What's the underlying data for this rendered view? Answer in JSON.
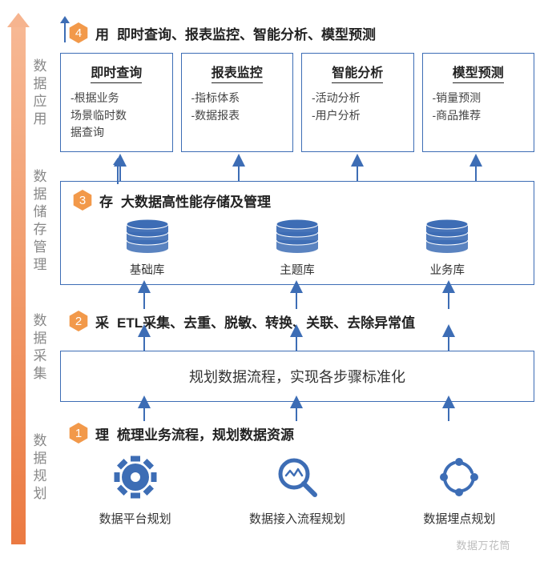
{
  "colors": {
    "box_border": "#3d6db5",
    "icon_blue": "#3d6db5",
    "badge_fill": "#f2994a",
    "text_dark": "#222222",
    "text_mid": "#444444",
    "text_gray": "#888888",
    "gradient_top": "#f7b894",
    "gradient_bottom": "#eb7a42"
  },
  "left_labels": {
    "l4": "数据应用",
    "l3": "数据储存管理",
    "l2": "数据采集",
    "l1": "数据规划"
  },
  "stage4": {
    "num": "4",
    "key": "用",
    "desc": "即时查询、报表监控、智能分析、模型预测",
    "boxes": [
      {
        "title": "即时查询",
        "items": [
          "-根据业务",
          "场景临时数",
          "据查询"
        ]
      },
      {
        "title": "报表监控",
        "items": [
          "-指标体系",
          "-数据报表"
        ]
      },
      {
        "title": "智能分析",
        "items": [
          "-活动分析",
          "-用户分析"
        ]
      },
      {
        "title": "模型预测",
        "items": [
          "-销量预测",
          "-商品推荐"
        ]
      }
    ]
  },
  "stage3": {
    "num": "3",
    "key": "存",
    "desc": "大数据高性能存储及管理",
    "dbs": [
      "基础库",
      "主题库",
      "业务库"
    ]
  },
  "stage2": {
    "num": "2",
    "key": "采",
    "desc": "ETL采集、去重、脱敏、转换、关联、去除异常值",
    "box_text": "规划数据流程，实现各步骤标准化"
  },
  "stage1": {
    "num": "1",
    "key": "理",
    "desc": "梳理业务流程，规划数据资源",
    "icons": [
      {
        "type": "gear",
        "label": "数据平台规划"
      },
      {
        "type": "magnify",
        "label": "数据接入流程规划"
      },
      {
        "type": "cycle",
        "label": "数据埋点规划"
      }
    ]
  },
  "watermark": "数据万花筒"
}
